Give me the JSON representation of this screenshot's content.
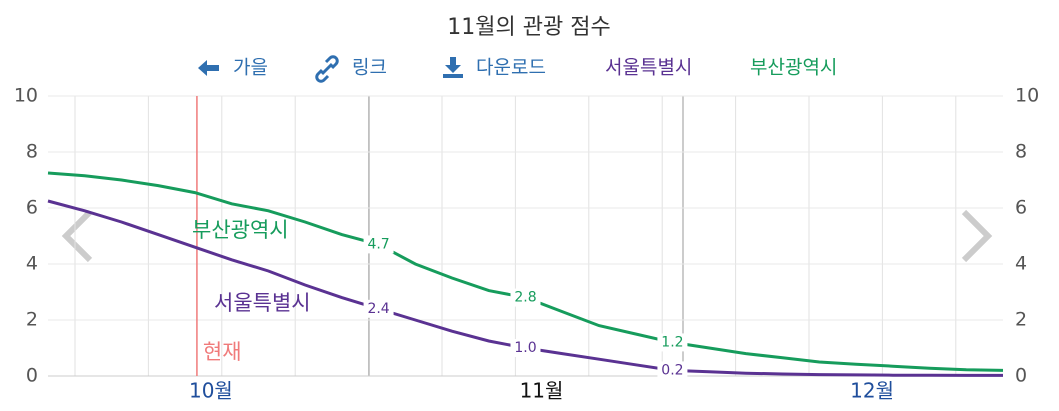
{
  "toolbar": {
    "back": "가을",
    "link": "링크",
    "download": "다운로드"
  },
  "chart_data": {
    "type": "line",
    "title": "11월의 관광 점수",
    "categories": [
      null,
      null,
      null,
      null,
      "10월",
      null,
      null,
      null,
      null,
      null,
      null,
      null,
      null,
      "11월",
      null,
      null,
      null,
      null,
      null,
      null,
      null,
      null,
      "12월",
      null,
      null,
      null,
      null
    ],
    "series": [
      {
        "name": "서울특별시",
        "color": "#5a3292",
        "values": [
          6.25,
          5.9,
          5.5,
          5.05,
          4.6,
          4.15,
          3.75,
          3.25,
          2.8,
          2.4,
          2.0,
          1.6,
          1.25,
          1.0,
          0.8,
          0.6,
          0.4,
          0.2,
          0.15,
          0.1,
          0.07,
          0.05,
          0.04,
          0.03,
          0.03,
          0.02,
          0.02
        ],
        "value_labels": [
          null,
          null,
          null,
          null,
          null,
          null,
          null,
          null,
          null,
          "2.4",
          null,
          null,
          null,
          "1.0",
          null,
          null,
          null,
          "0.2",
          null,
          null,
          null,
          null,
          null,
          null,
          null,
          null,
          null
        ]
      },
      {
        "name": "부산광역시",
        "color": "#169c5c",
        "values": [
          7.25,
          7.15,
          7.0,
          6.8,
          6.55,
          6.15,
          5.9,
          5.5,
          5.05,
          4.7,
          4.0,
          3.5,
          3.05,
          2.8,
          2.3,
          1.8,
          1.5,
          1.2,
          1.0,
          0.8,
          0.65,
          0.5,
          0.42,
          0.35,
          0.28,
          0.22,
          0.2
        ],
        "value_labels": [
          null,
          null,
          null,
          null,
          null,
          null,
          null,
          null,
          null,
          "4.7",
          null,
          null,
          null,
          "2.8",
          null,
          null,
          null,
          "1.2",
          null,
          null,
          null,
          null,
          null,
          null,
          null,
          null,
          null
        ]
      }
    ],
    "annotation": "현재",
    "ylim": [
      0,
      10
    ],
    "yticks": [
      0,
      2,
      4,
      6,
      8,
      10
    ],
    "y2lim": [
      0,
      10
    ],
    "y2ticks": [
      0,
      2,
      4,
      6,
      8,
      10
    ],
    "grid": true
  }
}
